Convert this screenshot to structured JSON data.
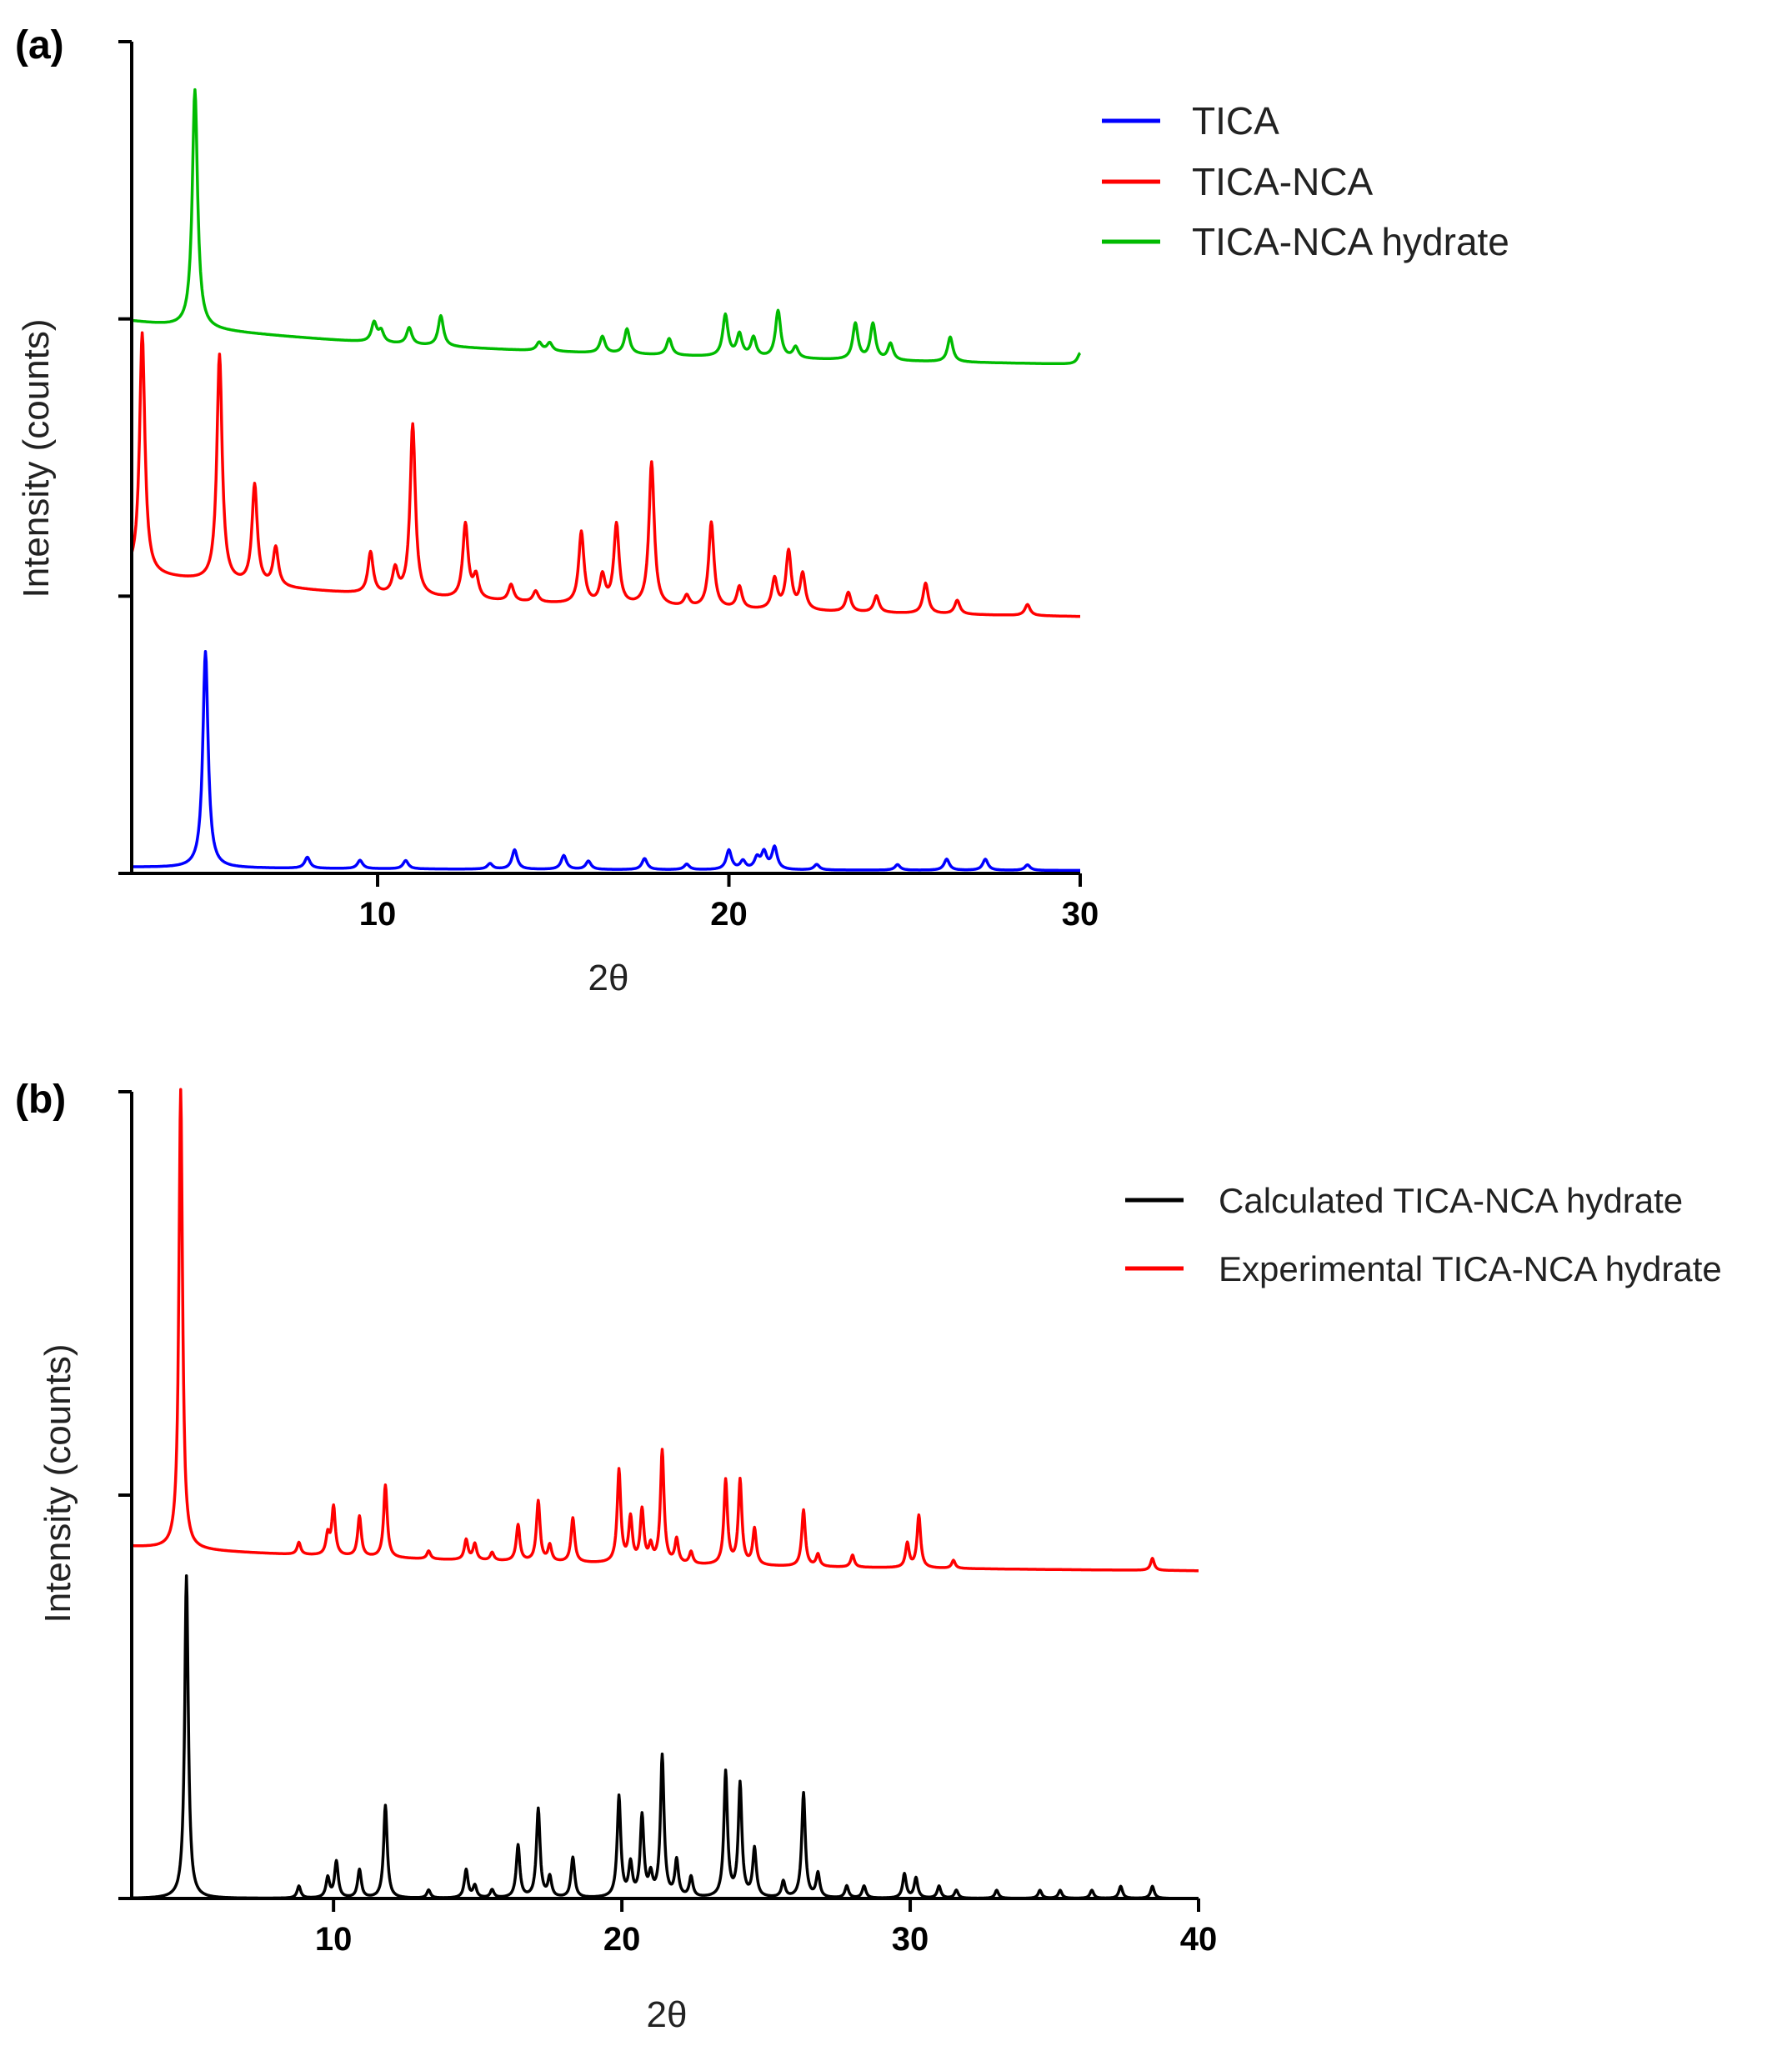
{
  "figure": {
    "chart_data": [
      {
        "type": "line",
        "panel_label": "(a)",
        "xlabel": "2θ",
        "ylabel": "Intensity (counts)",
        "xlim": [
          3,
          30
        ],
        "xticks": [
          10,
          20,
          30
        ],
        "ylim": [
          0,
          3
        ],
        "yticks": [
          0,
          1,
          2,
          3
        ],
        "legend_position": "top-right",
        "series": [
          {
            "name": "TICA",
            "color": "#0000ff",
            "baseline": 0.02,
            "end": 0.01,
            "peaks": [
              [
                5.1,
                0.78
              ],
              [
                8.0,
                0.04
              ],
              [
                9.5,
                0.03
              ],
              [
                10.8,
                0.03
              ],
              [
                13.2,
                0.02
              ],
              [
                13.9,
                0.07
              ],
              [
                15.3,
                0.05
              ],
              [
                16.0,
                0.03
              ],
              [
                17.6,
                0.04
              ],
              [
                18.8,
                0.02
              ],
              [
                20.0,
                0.07
              ],
              [
                20.4,
                0.03
              ],
              [
                20.8,
                0.04
              ],
              [
                21.0,
                0.06
              ],
              [
                21.3,
                0.08
              ],
              [
                22.5,
                0.02
              ],
              [
                24.8,
                0.02
              ],
              [
                26.2,
                0.04
              ],
              [
                27.3,
                0.04
              ],
              [
                28.5,
                0.02
              ]
            ]
          },
          {
            "name": "TICA-NCA",
            "color": "#ff0000",
            "baseline": 1.05,
            "end": 0.92,
            "peaks": [
              [
                3.3,
                0.87
              ],
              [
                5.5,
                0.82
              ],
              [
                6.5,
                0.36
              ],
              [
                7.1,
                0.14
              ],
              [
                9.8,
                0.15
              ],
              [
                10.5,
                0.09
              ],
              [
                11.0,
                0.62
              ],
              [
                12.5,
                0.27
              ],
              [
                12.8,
                0.08
              ],
              [
                13.8,
                0.06
              ],
              [
                14.5,
                0.04
              ],
              [
                15.8,
                0.26
              ],
              [
                16.4,
                0.1
              ],
              [
                16.8,
                0.29
              ],
              [
                17.8,
                0.52
              ],
              [
                18.8,
                0.04
              ],
              [
                19.5,
                0.31
              ],
              [
                20.3,
                0.08
              ],
              [
                21.3,
                0.11
              ],
              [
                21.7,
                0.21
              ],
              [
                22.1,
                0.13
              ],
              [
                23.4,
                0.07
              ],
              [
                24.2,
                0.06
              ],
              [
                25.6,
                0.11
              ],
              [
                26.5,
                0.05
              ],
              [
                28.5,
                0.04
              ]
            ]
          },
          {
            "name": "TICA-NCA hydrate",
            "color": "#00bb00",
            "baseline": 1.96,
            "end": 1.83,
            "peaks": [
              [
                4.8,
                0.86
              ],
              [
                9.9,
                0.07
              ],
              [
                10.1,
                0.04
              ],
              [
                10.9,
                0.06
              ],
              [
                11.8,
                0.11
              ],
              [
                14.6,
                0.03
              ],
              [
                14.9,
                0.03
              ],
              [
                16.4,
                0.06
              ],
              [
                17.1,
                0.09
              ],
              [
                18.3,
                0.06
              ],
              [
                19.9,
                0.15
              ],
              [
                20.3,
                0.08
              ],
              [
                20.7,
                0.07
              ],
              [
                21.4,
                0.17
              ],
              [
                21.9,
                0.04
              ],
              [
                23.6,
                0.13
              ],
              [
                24.1,
                0.13
              ],
              [
                24.6,
                0.06
              ],
              [
                26.3,
                0.09
              ],
              [
                30.0,
                0.04
              ]
            ]
          }
        ]
      },
      {
        "type": "line",
        "panel_label": "(b)",
        "xlabel": "2θ",
        "ylabel": "Intensity (counts)",
        "xlim": [
          3,
          40
        ],
        "xticks": [
          10,
          20,
          30,
          40
        ],
        "ylim": [
          0,
          2
        ],
        "yticks": [
          0,
          1,
          2
        ],
        "legend_position": "top-right",
        "series": [
          {
            "name": "Calculated TICA-NCA hydrate",
            "color": "#000000",
            "baseline": 0.0,
            "end": 0.0,
            "peaks": [
              [
                4.9,
                0.8
              ],
              [
                8.8,
                0.03
              ],
              [
                9.8,
                0.05
              ],
              [
                10.1,
                0.09
              ],
              [
                10.9,
                0.07
              ],
              [
                11.8,
                0.23
              ],
              [
                13.3,
                0.02
              ],
              [
                14.6,
                0.07
              ],
              [
                14.9,
                0.03
              ],
              [
                15.5,
                0.02
              ],
              [
                16.4,
                0.13
              ],
              [
                17.1,
                0.22
              ],
              [
                17.5,
                0.05
              ],
              [
                18.3,
                0.1
              ],
              [
                19.9,
                0.25
              ],
              [
                20.3,
                0.08
              ],
              [
                20.7,
                0.2
              ],
              [
                21.0,
                0.05
              ],
              [
                21.4,
                0.35
              ],
              [
                21.9,
                0.09
              ],
              [
                22.4,
                0.05
              ],
              [
                23.6,
                0.31
              ],
              [
                24.1,
                0.28
              ],
              [
                24.6,
                0.12
              ],
              [
                25.6,
                0.04
              ],
              [
                26.3,
                0.26
              ],
              [
                26.8,
                0.06
              ],
              [
                27.8,
                0.03
              ],
              [
                28.4,
                0.03
              ],
              [
                29.8,
                0.06
              ],
              [
                30.2,
                0.05
              ],
              [
                31.0,
                0.03
              ],
              [
                31.6,
                0.02
              ],
              [
                33.0,
                0.02
              ],
              [
                34.5,
                0.02
              ],
              [
                35.2,
                0.02
              ],
              [
                36.3,
                0.02
              ],
              [
                37.3,
                0.03
              ],
              [
                38.4,
                0.03
              ]
            ]
          },
          {
            "name": "Experimental TICA-NCA hydrate",
            "color": "#ff0000",
            "baseline": 0.86,
            "end": 0.81,
            "peaks": [
              [
                4.7,
                1.14
              ],
              [
                8.8,
                0.03
              ],
              [
                9.8,
                0.05
              ],
              [
                10.0,
                0.12
              ],
              [
                10.9,
                0.1
              ],
              [
                11.8,
                0.18
              ],
              [
                13.3,
                0.02
              ],
              [
                14.6,
                0.05
              ],
              [
                14.9,
                0.04
              ],
              [
                15.5,
                0.02
              ],
              [
                16.4,
                0.09
              ],
              [
                17.1,
                0.15
              ],
              [
                17.5,
                0.04
              ],
              [
                18.3,
                0.11
              ],
              [
                19.9,
                0.23
              ],
              [
                20.3,
                0.11
              ],
              [
                20.7,
                0.13
              ],
              [
                21.0,
                0.04
              ],
              [
                21.4,
                0.28
              ],
              [
                21.9,
                0.06
              ],
              [
                22.4,
                0.03
              ],
              [
                23.6,
                0.21
              ],
              [
                24.1,
                0.21
              ],
              [
                24.6,
                0.09
              ],
              [
                26.3,
                0.14
              ],
              [
                26.8,
                0.03
              ],
              [
                28.0,
                0.03
              ],
              [
                29.9,
                0.06
              ],
              [
                30.3,
                0.13
              ],
              [
                31.5,
                0.02
              ],
              [
                38.4,
                0.03
              ]
            ]
          }
        ]
      }
    ]
  }
}
